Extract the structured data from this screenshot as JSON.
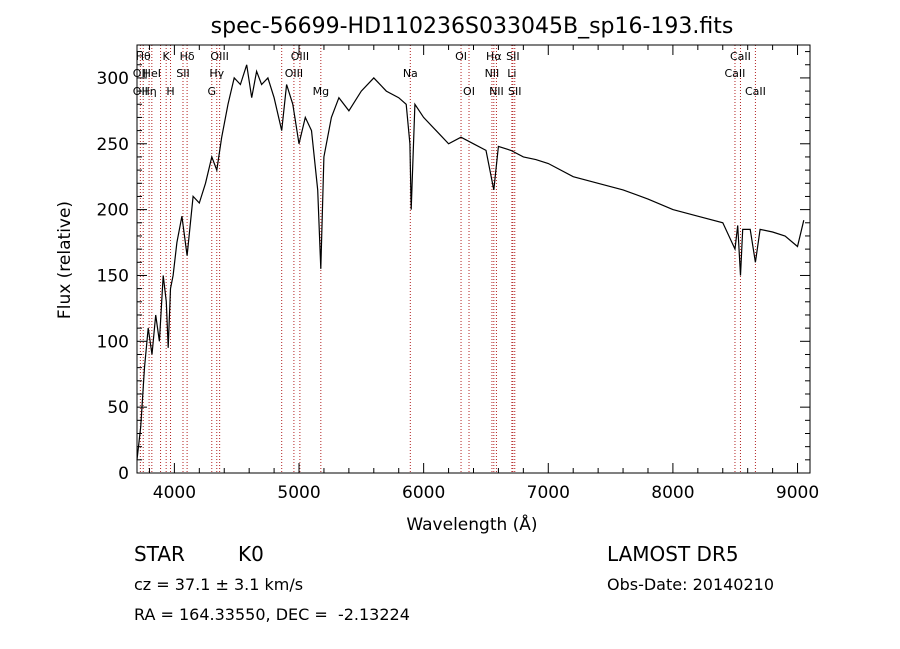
{
  "chart_data": {
    "type": "line",
    "title": "spec-56699-HD110236S033045B_sp16-193.fits",
    "xlabel": "Wavelength (Å)",
    "ylabel": "Flux (relative)",
    "xlim": [
      3700,
      9100
    ],
    "ylim": [
      0,
      325
    ],
    "xticks": [
      4000,
      5000,
      6000,
      7000,
      8000,
      9000
    ],
    "yticks": [
      0,
      50,
      100,
      150,
      200,
      250,
      300
    ],
    "grid": false,
    "series": [
      {
        "x": [
          3700,
          3730,
          3760,
          3790,
          3820,
          3850,
          3880,
          3910,
          3935,
          3950,
          3969,
          3990,
          4020,
          4060,
          4102,
          4150,
          4200,
          4250,
          4300,
          4340,
          4380,
          4430,
          4480,
          4530,
          4580,
          4620,
          4660,
          4700,
          4750,
          4800,
          4861,
          4900,
          4950,
          5000,
          5050,
          5100,
          5150,
          5175,
          5200,
          5260,
          5320,
          5400,
          5500,
          5600,
          5700,
          5800,
          5860,
          5890,
          5900,
          5930,
          6000,
          6100,
          6200,
          6300,
          6400,
          6500,
          6563,
          6600,
          6700,
          6800,
          6900,
          7000,
          7200,
          7400,
          7600,
          7800,
          8000,
          8200,
          8400,
          8498,
          8520,
          8542,
          8560,
          8620,
          8662,
          8700,
          8800,
          8900,
          9000,
          9050
        ],
        "values": [
          10,
          35,
          80,
          110,
          90,
          120,
          100,
          150,
          130,
          95,
          140,
          150,
          175,
          195,
          165,
          210,
          205,
          220,
          240,
          230,
          255,
          280,
          300,
          295,
          310,
          285,
          305,
          295,
          300,
          285,
          260,
          295,
          280,
          250,
          270,
          260,
          215,
          155,
          240,
          270,
          285,
          275,
          290,
          300,
          290,
          285,
          280,
          250,
          200,
          280,
          270,
          260,
          250,
          255,
          250,
          245,
          215,
          248,
          245,
          240,
          238,
          235,
          225,
          220,
          215,
          208,
          200,
          195,
          190,
          170,
          188,
          150,
          185,
          185,
          160,
          185,
          183,
          180,
          172,
          192
        ]
      }
    ],
    "spectral_lines": [
      {
        "wl": 3750,
        "label": "Hθ",
        "row": 0
      },
      {
        "wl": 3727,
        "label": "OII",
        "row": 1
      },
      {
        "wl": 3727,
        "label": "OII",
        "row": 2
      },
      {
        "wl": 3797,
        "label": "Hη",
        "row": 2
      },
      {
        "wl": 3819,
        "label": "HeI",
        "row": 1
      },
      {
        "wl": 3889,
        "label": "",
        "row": 1
      },
      {
        "wl": 3934,
        "label": "K",
        "row": 0
      },
      {
        "wl": 3969,
        "label": "H",
        "row": 2
      },
      {
        "wl": 4069,
        "label": "SII",
        "row": 1
      },
      {
        "wl": 4102,
        "label": "Hδ",
        "row": 0
      },
      {
        "wl": 4300,
        "label": "G",
        "row": 2
      },
      {
        "wl": 4340,
        "label": "Hγ",
        "row": 1
      },
      {
        "wl": 4363,
        "label": "OIII",
        "row": 0
      },
      {
        "wl": 4861,
        "label": "",
        "row": 1
      },
      {
        "wl": 4959,
        "label": "OIII",
        "row": 1
      },
      {
        "wl": 5007,
        "label": "OIII",
        "row": 0
      },
      {
        "wl": 5175,
        "label": "Mg",
        "row": 2
      },
      {
        "wl": 5893,
        "label": "Na",
        "row": 1
      },
      {
        "wl": 6300,
        "label": "OI",
        "row": 0
      },
      {
        "wl": 6364,
        "label": "OI",
        "row": 2
      },
      {
        "wl": 6548,
        "label": "NII",
        "row": 1
      },
      {
        "wl": 6563,
        "label": "Hα",
        "row": 0
      },
      {
        "wl": 6584,
        "label": "NII",
        "row": 2
      },
      {
        "wl": 6708,
        "label": "Li",
        "row": 1
      },
      {
        "wl": 6716,
        "label": "SII",
        "row": 0
      },
      {
        "wl": 6731,
        "label": "SII",
        "row": 2
      },
      {
        "wl": 8498,
        "label": "CaII",
        "row": 1
      },
      {
        "wl": 8542,
        "label": "CaII",
        "row": 0
      },
      {
        "wl": 8662,
        "label": "CaII",
        "row": 2
      }
    ]
  },
  "info": {
    "class_label": "STAR",
    "subclass": "K0",
    "survey": "LAMOST DR5",
    "cz": "cz = 37.1 ± 3.1 km/s",
    "obs_date": "Obs-Date: 20140210",
    "coords": "RA = 164.33550, DEC =  -2.13224"
  },
  "colors": {
    "line_marker": "#b22222",
    "spectrum": "#000000"
  }
}
